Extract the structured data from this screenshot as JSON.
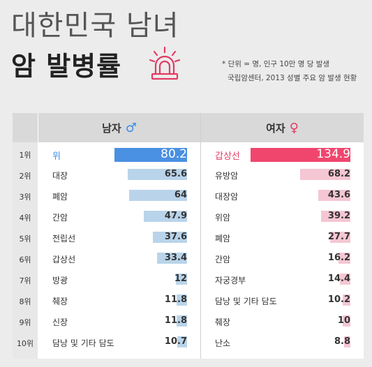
{
  "title_line1": "대한민국 남녀",
  "title_line2": "암 발병률",
  "notes": [
    "* 단위 = 명, 인구 10만 명 당 발생",
    "국립암센터, 2013 성별 주요 암 발생 현황"
  ],
  "headers": {
    "male": "남자",
    "female": "여자",
    "male_symbol": "♂",
    "female_symbol": "♀"
  },
  "icon": "siren-icon",
  "colors": {
    "male_top": "#4a90e2",
    "male_bar": "#b9d4ea",
    "female_top": "#f0466e",
    "female_bar": "#f5c6d3"
  },
  "chart_data": {
    "type": "bar",
    "title": "대한민국 남녀 암 발병률",
    "unit": "명 (인구 10만 명 당)",
    "ranks": [
      "1위",
      "2위",
      "3위",
      "4위",
      "5위",
      "6위",
      "7위",
      "8위",
      "9위",
      "10위"
    ],
    "series": [
      {
        "name": "남자",
        "categories": [
          "위",
          "대장",
          "폐암",
          "간암",
          "전립선",
          "갑상선",
          "방광",
          "췌장",
          "신장",
          "담낭 및 기타 담도"
        ],
        "values": [
          80.2,
          65.6,
          64,
          47.9,
          37.6,
          33.4,
          12,
          11.8,
          11.8,
          10.7
        ],
        "labels": [
          "80.2",
          "65.6",
          "64",
          "47.9",
          "37.6",
          "33.4",
          "12",
          "11.8",
          "11.8",
          "10.7"
        ]
      },
      {
        "name": "여자",
        "categories": [
          "갑상선",
          "유방암",
          "대장암",
          "위암",
          "폐암",
          "간암",
          "자궁경부",
          "담낭 및 기타 담도",
          "췌장",
          "난소"
        ],
        "values": [
          134.9,
          68.2,
          43.6,
          39.2,
          27.7,
          16.2,
          14.4,
          10.2,
          10,
          8.8
        ],
        "labels": [
          "134.9",
          "68.2",
          "43.6",
          "39.2",
          "27.7",
          "16.2",
          "14.4",
          "10.2",
          "10",
          "8.8"
        ]
      }
    ]
  }
}
